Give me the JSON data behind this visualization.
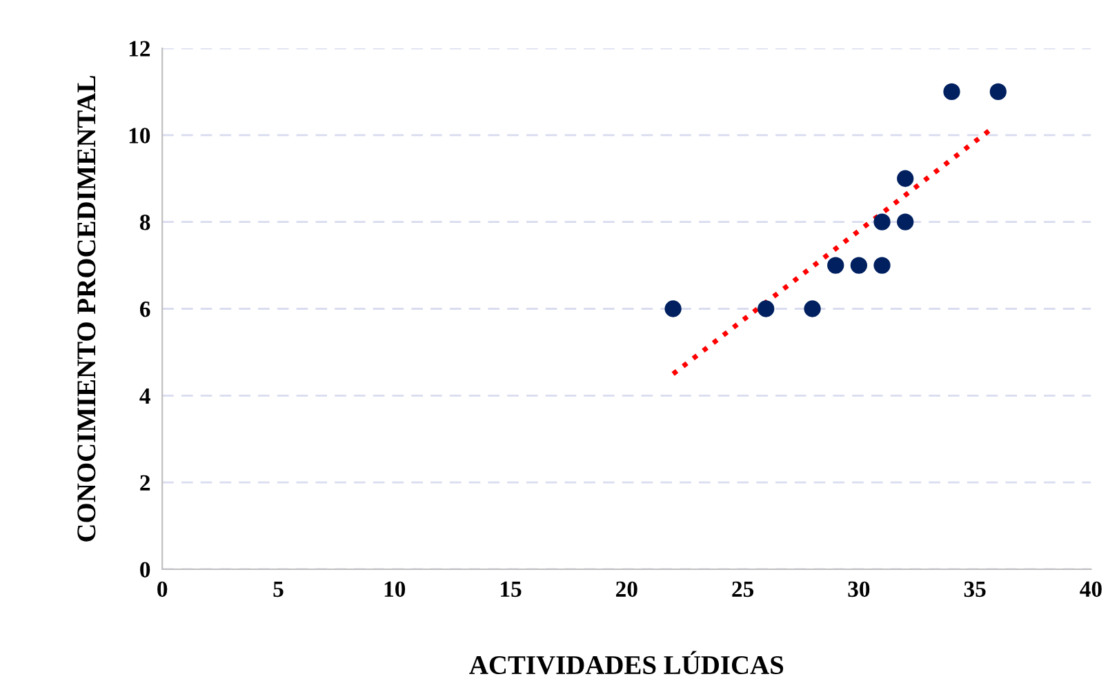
{
  "chart_data": {
    "type": "scatter",
    "xlabel": "ACTIVIDADES LÚDICAS",
    "ylabel": "CONOCIMIENTO PROCEDIMENTAL",
    "xlim": [
      0,
      40
    ],
    "xticks": [
      0,
      5,
      10,
      15,
      20,
      25,
      30,
      35,
      40
    ],
    "ylim": [
      0,
      12
    ],
    "yticks": [
      0,
      2,
      4,
      6,
      8,
      10,
      12
    ],
    "grid": "y",
    "series": [
      {
        "color": "#002060",
        "marker": "circle",
        "x": [
          22,
          26,
          28,
          29,
          30,
          31,
          31,
          32,
          32,
          34,
          36
        ],
        "values": [
          6,
          6,
          6,
          7,
          7,
          7,
          8,
          8,
          9,
          11,
          11
        ]
      },
      {
        "type": "line",
        "color": "#ff0000",
        "line_style": "dotted",
        "marker": "none",
        "x": [
          22,
          35.6
        ],
        "values": [
          4.5,
          10.1
        ]
      }
    ]
  }
}
